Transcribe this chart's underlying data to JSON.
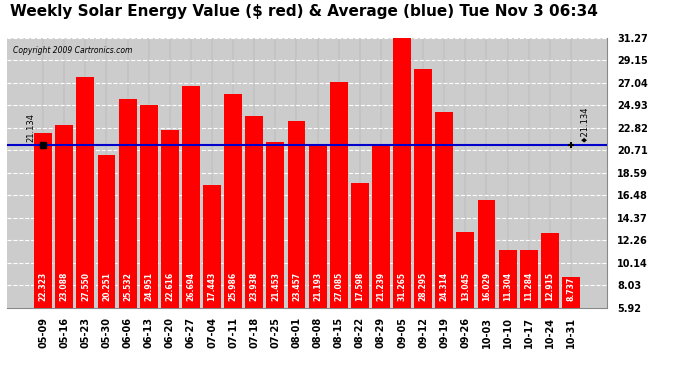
{
  "title": "Weekly Solar Energy Value ($ red) & Average (blue) Tue Nov 3 06:34",
  "copyright": "Copyright 2009 Cartronics.com",
  "categories": [
    "05-09",
    "05-16",
    "05-23",
    "05-30",
    "06-06",
    "06-13",
    "06-20",
    "06-27",
    "07-04",
    "07-11",
    "07-18",
    "07-25",
    "08-01",
    "08-08",
    "08-15",
    "08-22",
    "08-29",
    "09-05",
    "09-12",
    "09-19",
    "09-26",
    "10-03",
    "10-10",
    "10-17",
    "10-24",
    "10-31"
  ],
  "values": [
    22.323,
    23.088,
    27.55,
    20.251,
    25.532,
    24.951,
    22.616,
    26.694,
    17.443,
    25.986,
    23.938,
    21.453,
    23.457,
    21.193,
    27.085,
    17.598,
    21.239,
    31.265,
    28.295,
    24.314,
    13.045,
    16.029,
    11.304,
    11.284,
    12.915,
    8.737
  ],
  "average": 21.134,
  "bar_color": "#ff0000",
  "avg_color": "#0000cc",
  "background_color": "#ffffff",
  "plot_bg_color": "#cccccc",
  "yticks": [
    5.92,
    8.03,
    10.14,
    12.26,
    14.37,
    16.48,
    18.59,
    20.71,
    22.82,
    24.93,
    27.04,
    29.15,
    31.27
  ],
  "ylim": [
    5.92,
    31.27
  ],
  "avg_label": "21.134",
  "title_fontsize": 11,
  "tick_fontsize": 7,
  "bar_label_fontsize": 5.5
}
